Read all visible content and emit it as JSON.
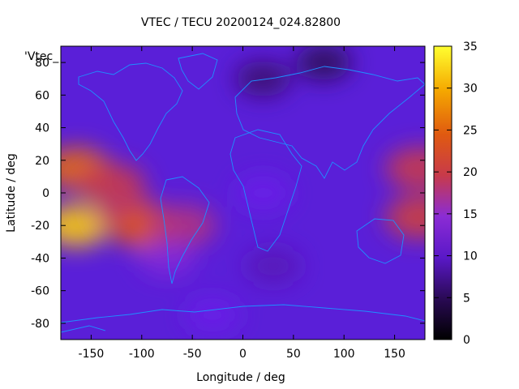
{
  "chart_data": {
    "type": "heatmap",
    "title": "VTEC / TECU 20200124_024.82800",
    "xlabel": "Longitude / deg",
    "ylabel": "Latitude / deg",
    "xlim": [
      -180,
      180
    ],
    "ylim": [
      -90,
      90
    ],
    "xticks": [
      "-150",
      "-100",
      "-50",
      "0",
      "50",
      "100",
      "150"
    ],
    "yticks": [
      "-80",
      "-60",
      "-40",
      "-20",
      "0",
      "20",
      "40",
      "60",
      "80"
    ],
    "colorbar": {
      "min": 0,
      "max": 35,
      "ticks": [
        "0",
        "5",
        "10",
        "15",
        "20",
        "25",
        "30",
        "35"
      ],
      "palette": [
        "#000000",
        "#3a0a6e",
        "#6a1ee8",
        "#8b2cd4",
        "#c83a4a",
        "#e05a10",
        "#f5a800",
        "#ffff30"
      ]
    },
    "legend_label": "'Vtec_",
    "overlay_color": "#1e90ff",
    "grid": false,
    "tec_regions": [
      {
        "lon": -165,
        "lat": 15,
        "value": 26
      },
      {
        "lon": -165,
        "lat": -20,
        "value": 32
      },
      {
        "lon": -130,
        "lat": 5,
        "value": 20
      },
      {
        "lon": -110,
        "lat": -15,
        "value": 19
      },
      {
        "lon": -95,
        "lat": -22,
        "value": 24
      },
      {
        "lon": -60,
        "lat": -20,
        "value": 18
      },
      {
        "lon": -75,
        "lat": -40,
        "value": 14
      },
      {
        "lon": 175,
        "lat": 15,
        "value": 20
      },
      {
        "lon": 175,
        "lat": -15,
        "value": 21
      },
      {
        "lon": 20,
        "lat": 0,
        "value": 10
      },
      {
        "lon": 30,
        "lat": -45,
        "value": 8
      },
      {
        "lon": 20,
        "lat": 70,
        "value": 5
      },
      {
        "lon": 80,
        "lat": 80,
        "value": 4
      },
      {
        "lon": -30,
        "lat": -75,
        "value": 10
      }
    ]
  }
}
